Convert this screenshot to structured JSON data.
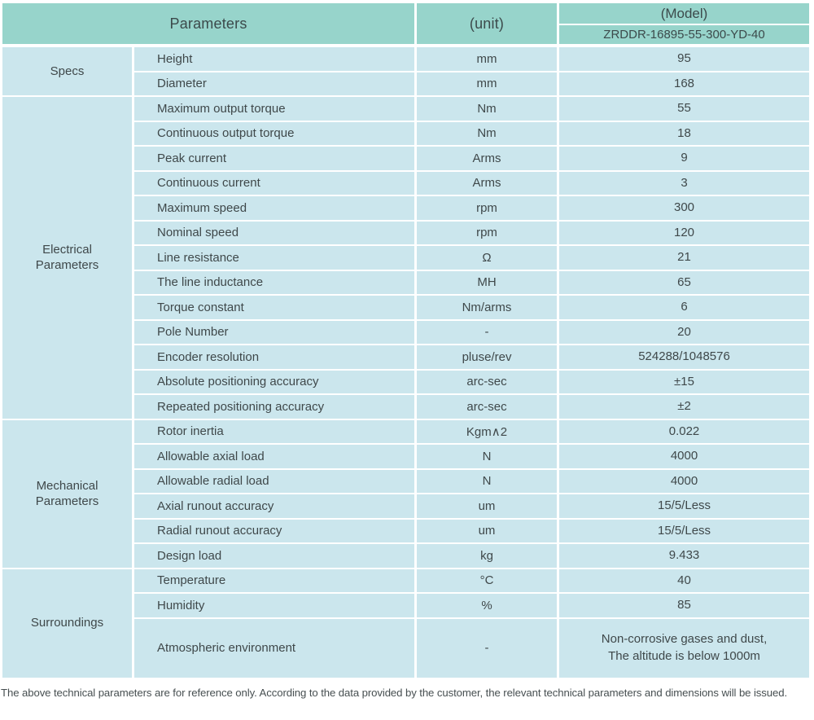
{
  "colors": {
    "header_bg": "#97d4cb",
    "row_bg": "#cbe6ed",
    "divider": "#ffffff",
    "text": "#3f484a"
  },
  "table": {
    "header": {
      "parameters_label": "Parameters",
      "unit_label": "(unit)",
      "model_label": "(Model)",
      "model_value": "ZRDDR-16895-55-300-YD-40"
    },
    "groups": [
      {
        "name": "Specs",
        "rows": [
          {
            "param": "Height",
            "unit": "mm",
            "value": "95"
          },
          {
            "param": "Diameter",
            "unit": "mm",
            "value": "168"
          }
        ]
      },
      {
        "name": "Electrical Parameters",
        "rows": [
          {
            "param": "Maximum output torque",
            "unit": "Nm",
            "value": "55"
          },
          {
            "param": "Continuous output torque",
            "unit": "Nm",
            "value": "18"
          },
          {
            "param": "Peak current",
            "unit": "Arms",
            "value": "9"
          },
          {
            "param": "Continuous current",
            "unit": "Arms",
            "value": "3"
          },
          {
            "param": "Maximum speed",
            "unit": "rpm",
            "value": "300"
          },
          {
            "param": "Nominal speed",
            "unit": "rpm",
            "value": "120"
          },
          {
            "param": "Line resistance",
            "unit": "Ω",
            "value": "21"
          },
          {
            "param": "The line inductance",
            "unit": "MH",
            "value": "65"
          },
          {
            "param": "Torque constant",
            "unit": "Nm/arms",
            "value": "6"
          },
          {
            "param": "Pole Number",
            "unit": "-",
            "value": "20"
          },
          {
            "param": "Encoder resolution",
            "unit": "pluse/rev",
            "value": "524288/1048576"
          },
          {
            "param": "Absolute positioning accuracy",
            "unit": "arc-sec",
            "value": "±15"
          },
          {
            "param": "Repeated positioning accuracy",
            "unit": "arc-sec",
            "value": "±2"
          }
        ]
      },
      {
        "name": "Mechanical Parameters",
        "rows": [
          {
            "param": "Rotor inertia",
            "unit": "Kgm∧2",
            "value": "0.022"
          },
          {
            "param": "Allowable axial load",
            "unit": "N",
            "value": "4000"
          },
          {
            "param": "Allowable radial load",
            "unit": "N",
            "value": "4000"
          },
          {
            "param": "Axial runout accuracy",
            "unit": "um",
            "value": "15/5/Less"
          },
          {
            "param": "Radial runout accuracy",
            "unit": "um",
            "value": "15/5/Less"
          },
          {
            "param": "Design load",
            "unit": "kg",
            "value": "9.433"
          }
        ]
      },
      {
        "name": "Surroundings",
        "rows": [
          {
            "param": "Temperature",
            "unit": "°C",
            "value": "40"
          },
          {
            "param": "Humidity",
            "unit": "%",
            "value": "85"
          },
          {
            "param": "Atmospheric environment",
            "unit": "-",
            "value": "Non-corrosive gases and dust,\nThe altitude is below 1000m",
            "tall": true
          }
        ]
      }
    ],
    "footnote": "The above technical parameters are for reference only. According to the data provided by the customer, the relevant technical parameters and dimensions will be issued."
  }
}
